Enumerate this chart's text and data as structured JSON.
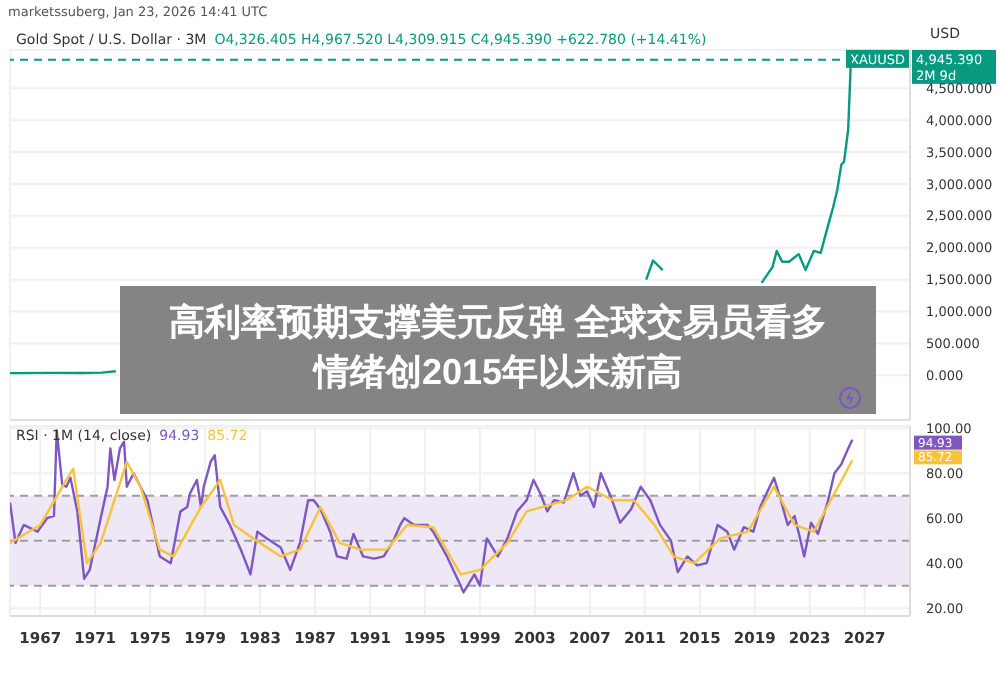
{
  "chart_data": [
    {
      "type": "line",
      "title": "Gold Spot / U.S. Dollar · 3M",
      "subtitle": "O4,326.405 H4,967.520 L4,309.915 C4,945.390 +622.780 (+14.41%)",
      "ylabel": "USD",
      "annotations": [
        "marketssuberg, Jan 23, 2026 14:41 UTC",
        "高利率预期支撑美元反弹 全球交易员看多情绪创2015年以来新高",
        "XAUUSD",
        "2M 9d"
      ],
      "series": [
        {
          "color": "#089981",
          "x": [
            1964.8,
            1968,
            1970,
            1971.5,
            1972.5,
            1973.5,
            1974.8,
            1976.5,
            1978,
            1979.5,
            1980.1,
            1980.5,
            1981.5,
            1982.5,
            1983.5,
            1985,
            1987.5,
            1988.5,
            1990,
            1993,
            1996,
            1998,
            1999.5,
            2001,
            2002,
            2003.5,
            2005,
            2006.3,
            2007.5,
            2008.2,
            2008.8,
            2009.5,
            2010.3,
            2011.1,
            2011.6,
            2012.3,
            2013.3,
            2014,
            2015.5,
            2016.3,
            2016.8,
            2018.6,
            2019.5,
            2020.3,
            2020.6,
            2021,
            2021.5,
            2022.2,
            2022.7,
            2023.3,
            2023.8,
            2024.3,
            2024.7,
            2025,
            2025.3,
            2025.5,
            2025.8,
            2026.0
          ],
          "values": [
            35,
            39,
            36,
            43,
            65,
            null,
            null,
            null,
            null,
            null,
            null,
            null,
            null,
            null,
            null,
            null,
            null,
            null,
            null,
            null,
            null,
            null,
            null,
            null,
            null,
            null,
            null,
            null,
            null,
            null,
            null,
            null,
            null,
            1500,
            1800,
            1650,
            null,
            null,
            null,
            null,
            null,
            null,
            1450,
            1700,
            1950,
            1780,
            1780,
            1900,
            1650,
            1950,
            1920,
            2320,
            2630,
            2900,
            3300,
            3350,
            3850,
            4945.39
          ]
        }
      ],
      "xlim": [
        1964.8,
        2030.3
      ],
      "xticks": [
        1967,
        1971,
        1975,
        1979,
        1983,
        1987,
        1991,
        1995,
        1999,
        2003,
        2007,
        2011,
        2015,
        2019,
        2023,
        2027
      ],
      "ylim": [
        -700,
        5100
      ],
      "yticks": [
        {
          "value": 0,
          "label": "0.000"
        },
        {
          "value": 500,
          "label": "500.000"
        },
        {
          "value": 1000,
          "label": "1,000.000"
        },
        {
          "value": 1500,
          "label": "1,500.000"
        },
        {
          "value": 2000,
          "label": "2,000.000"
        },
        {
          "value": 2500,
          "label": "2,500.000"
        },
        {
          "value": 3000,
          "label": "3,000.000"
        },
        {
          "value": 3500,
          "label": "3,500.000"
        },
        {
          "value": 4000,
          "label": "4,000.000"
        },
        {
          "value": 4500,
          "label": "4,500.000"
        }
      ],
      "ref_lines": [
        {
          "axis": "y",
          "value": 4945.39,
          "label": "4,945.390",
          "color": "#089981",
          "line_style": "dashed"
        }
      ],
      "grid": true,
      "tick_labels": "y"
    },
    {
      "type": "line",
      "title": "RSI · 1M (14, close)",
      "series": [
        {
          "color": "#7e57c2",
          "x": [
            1964.8,
            1965.2,
            1965.8,
            1966.8,
            1967.5,
            1968.0,
            1968.2,
            1968.6,
            1968.9,
            1969.2,
            1969.7,
            1970.2,
            1970.6,
            1971.4,
            1971.9,
            1972.1,
            1972.4,
            1972.8,
            1973.1,
            1973.3,
            1973.8,
            1974.3,
            1974.8,
            1975.7,
            1976.5,
            1977.2,
            1977.7,
            1977.9,
            1978.4,
            1978.7,
            1978.9,
            1979.4,
            1979.7,
            1980.1,
            1980.8,
            1981.6,
            1982.3,
            1982.8,
            1983.5,
            1984.5,
            1985.2,
            1985.9,
            1986.5,
            1986.9,
            1987.4,
            1988.1,
            1988.6,
            1989.3,
            1989.8,
            1990.5,
            1991.3,
            1992.0,
            1992.7,
            1993.2,
            1993.5,
            1994.2,
            1995.2,
            1995.6,
            1996.6,
            1997.6,
            1997.8,
            1998.6,
            1999.0,
            1999.5,
            2000.3,
            2001.0,
            2001.7,
            2002.4,
            2002.9,
            2003.4,
            2003.9,
            2004.4,
            2005.1,
            2005.8,
            2006.3,
            2006.8,
            2007.3,
            2007.8,
            2008.5,
            2009.2,
            2010.0,
            2010.7,
            2011.4,
            2012.1,
            2012.9,
            2013.4,
            2014.1,
            2014.8,
            2015.5,
            2016.3,
            2017.0,
            2017.5,
            2018.2,
            2018.9,
            2019.4,
            2020.4,
            2020.9,
            2021.4,
            2021.9,
            2022.3,
            2022.6,
            2023.1,
            2023.6,
            2024.3,
            2024.8,
            2025.3,
            2025.8,
            2026.1
          ],
          "values": [
            67,
            49,
            57,
            54,
            60,
            61,
            99,
            75,
            74,
            78,
            63,
            33,
            37,
            60,
            74,
            91,
            77,
            91,
            94,
            74,
            80,
            74,
            68,
            43,
            40,
            63,
            65,
            71,
            77,
            65,
            74,
            85,
            88,
            65,
            57,
            46,
            35,
            54,
            51,
            47,
            37,
            49,
            68,
            68,
            64,
            54,
            43,
            42,
            53,
            43,
            42,
            43,
            50,
            57,
            60,
            57,
            57,
            54,
            43,
            30,
            27,
            35,
            30,
            51,
            43,
            51,
            63,
            68,
            77,
            71,
            63,
            68,
            67,
            80,
            70,
            72,
            65,
            80,
            70,
            58,
            64,
            74,
            68,
            57,
            50,
            36,
            43,
            39,
            40,
            57,
            54,
            46,
            56,
            54,
            65,
            78,
            68,
            57,
            61,
            51,
            43,
            58,
            53,
            67,
            80,
            84,
            91,
            94.93
          ]
        },
        {
          "color": "#f9c23c",
          "x": [
            1964.8,
            1967.0,
            1968.9,
            1969.4,
            1970.4,
            1971.4,
            1973.3,
            1974.3,
            1975.7,
            1976.7,
            1978.7,
            1980.1,
            1981.1,
            1982.5,
            1984.5,
            1985.9,
            1987.4,
            1988.8,
            1990.3,
            1992.2,
            1993.7,
            1995.6,
            1997.6,
            1999.0,
            2001.0,
            2002.4,
            2005.3,
            2006.8,
            2008.7,
            2010.2,
            2011.7,
            2013.1,
            2014.6,
            2016.5,
            2018.5,
            2020.4,
            2021.9,
            2023.3,
            2024.8,
            2026.1
          ],
          "values": [
            49,
            57,
            77,
            82,
            40,
            49,
            85,
            74,
            46,
            43,
            65,
            77,
            57,
            51,
            43,
            46,
            65,
            49,
            46,
            46,
            57,
            56,
            35,
            37,
            49,
            63,
            68,
            74,
            68,
            68,
            57,
            43,
            40,
            51,
            54,
            74,
            57,
            54,
            71,
            85.72
          ]
        }
      ],
      "annotations": [
        "94.93",
        "85.72"
      ],
      "xlim": [
        1964.8,
        2030.3
      ],
      "xticks": [
        1967,
        1971,
        1975,
        1979,
        1983,
        1987,
        1991,
        1995,
        1999,
        2003,
        2007,
        2011,
        2015,
        2019,
        2023,
        2027
      ],
      "ylim": [
        16.5,
        101
      ],
      "yticks": [
        {
          "value": 20,
          "label": "20.00"
        },
        {
          "value": 40,
          "label": "40.00"
        },
        {
          "value": 60,
          "label": "60.00"
        },
        {
          "value": 80,
          "label": "80.00"
        },
        {
          "value": 100,
          "label": "100.00"
        }
      ],
      "bands": [
        {
          "axis": "y",
          "from": 30,
          "to": 70,
          "color": "#ede7f6"
        }
      ],
      "ref_lines": [
        {
          "axis": "y",
          "value": 70,
          "color": "#9e9e9e",
          "line_style": "dashed"
        },
        {
          "axis": "y",
          "value": 50,
          "color": "#9e9e9e",
          "line_style": "dashed"
        },
        {
          "axis": "y",
          "value": 30,
          "color": "#9e9e9e",
          "line_style": "dashed"
        }
      ],
      "grid": true
    }
  ]
}
